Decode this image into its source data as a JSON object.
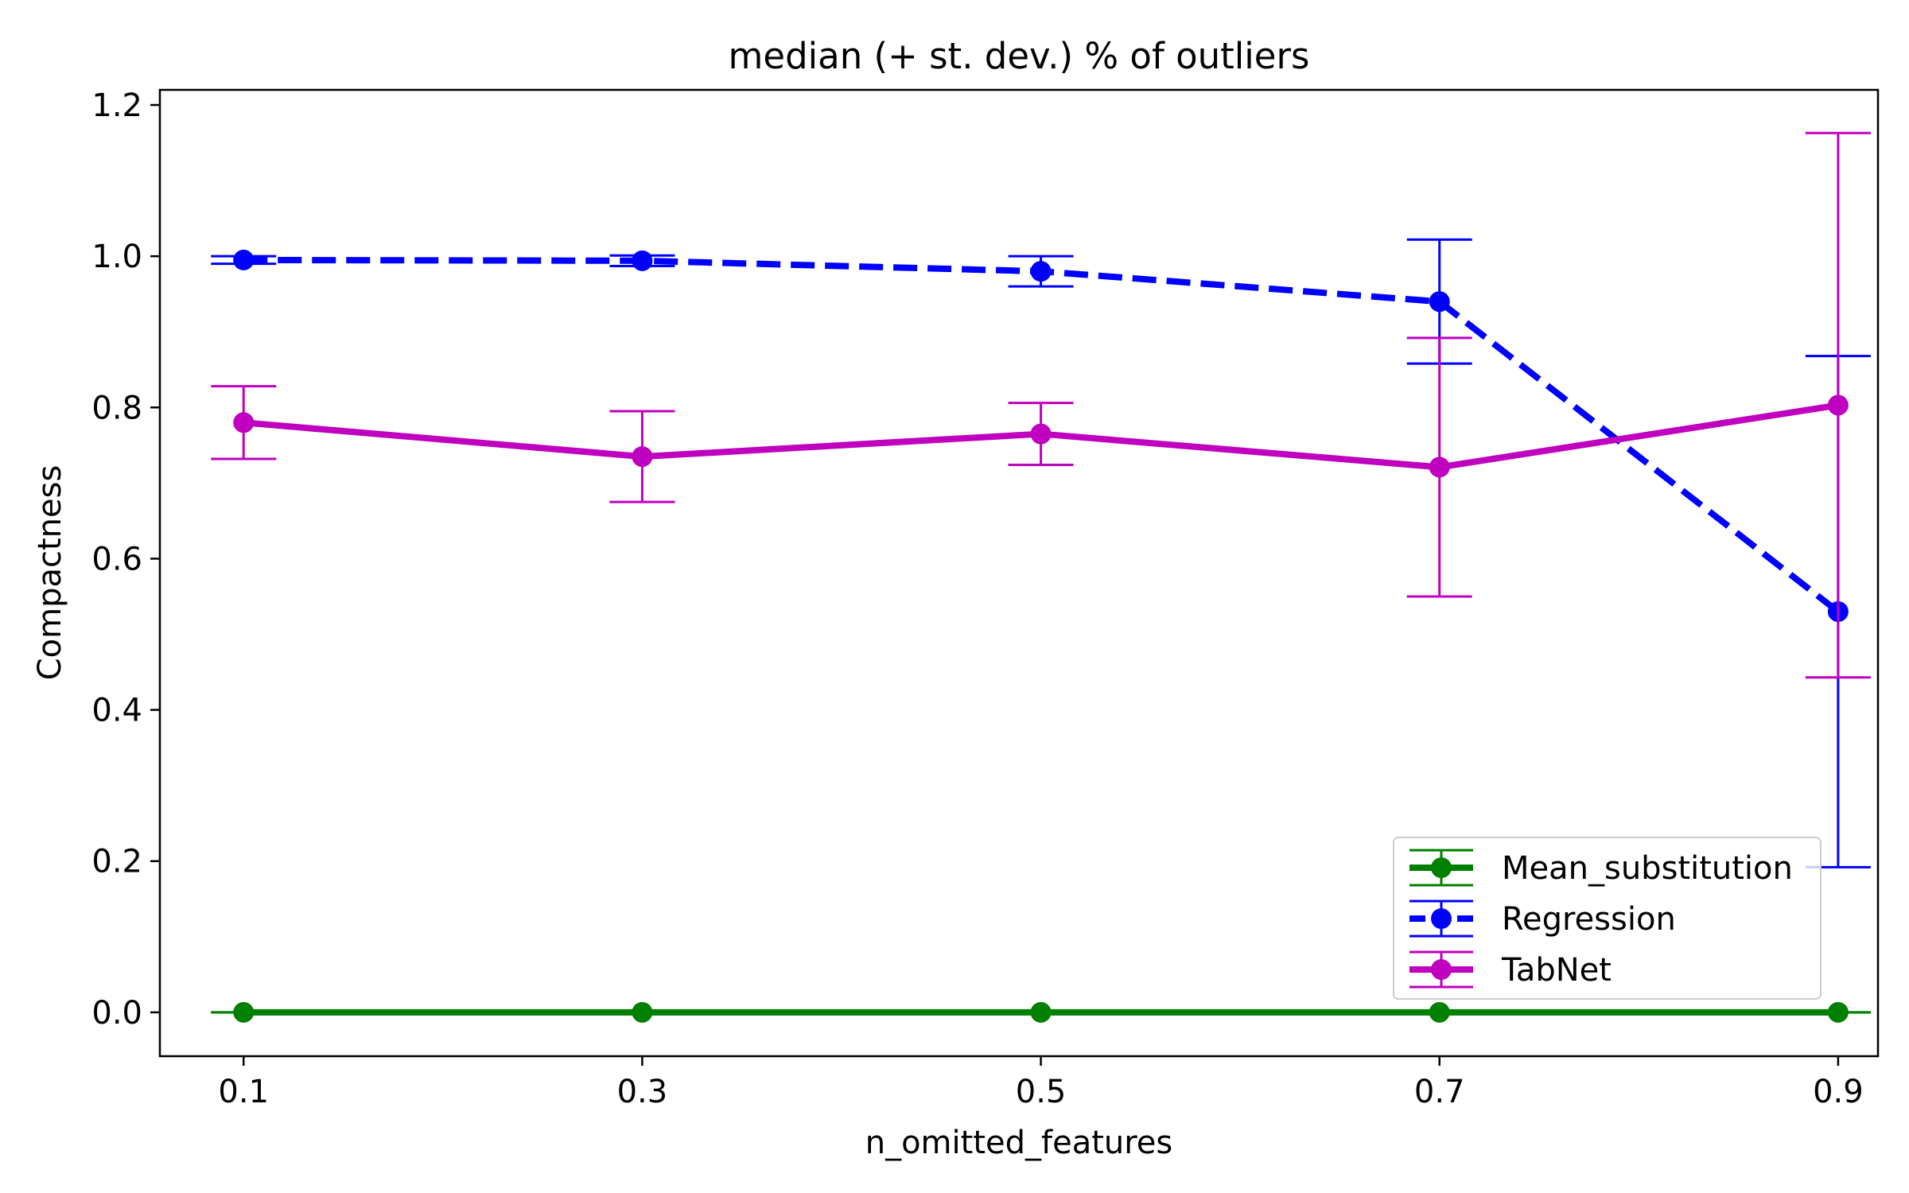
{
  "chart_data": {
    "type": "line",
    "title": "median (+ st. dev.) % of outliers",
    "xlabel": "n_omitted_features",
    "ylabel": "Compactness",
    "x": [
      0.1,
      0.3,
      0.5,
      0.7,
      0.9
    ],
    "x_tick_labels": [
      "0.1",
      "0.3",
      "0.5",
      "0.7",
      "0.9"
    ],
    "xlim": [
      0.058,
      0.92
    ],
    "ylim": [
      -0.058,
      1.22
    ],
    "y_ticks": [
      0.0,
      0.2,
      0.4,
      0.6,
      0.8,
      1.0,
      1.2
    ],
    "y_tick_labels": [
      "0.0",
      "0.2",
      "0.4",
      "0.6",
      "0.8",
      "1.0",
      "1.2"
    ],
    "grid": false,
    "legend_position": "lower-right",
    "series": [
      {
        "name": "Mean_substitution",
        "color": "#008000",
        "line_style": "solid",
        "values": [
          0.0,
          0.0,
          0.0,
          0.0,
          0.0
        ],
        "errors": [
          0.0,
          0.0,
          0.0,
          0.0,
          0.0
        ]
      },
      {
        "name": "Regression",
        "color": "#0000ff",
        "line_style": "dashed",
        "values": [
          0.995,
          0.994,
          0.98,
          0.94,
          0.53
        ],
        "errors": [
          0.005,
          0.007,
          0.02,
          0.082,
          0.338
        ]
      },
      {
        "name": "TabNet",
        "color": "#bf00bf",
        "line_style": "solid",
        "values": [
          0.78,
          0.735,
          0.765,
          0.721,
          0.803
        ],
        "errors": [
          0.048,
          0.06,
          0.041,
          0.171,
          0.36
        ]
      }
    ]
  }
}
